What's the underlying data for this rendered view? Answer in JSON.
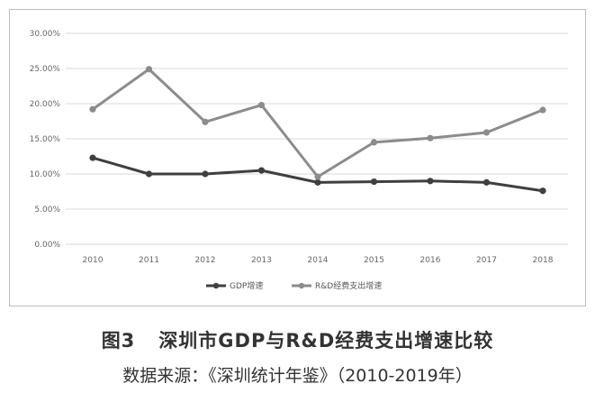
{
  "chart_data": {
    "type": "line",
    "categories": [
      "2010",
      "2011",
      "2012",
      "2013",
      "2014",
      "2015",
      "2016",
      "2017",
      "2018"
    ],
    "series": [
      {
        "name": "GDP增速",
        "values": [
          12.3,
          10.0,
          10.0,
          10.5,
          8.8,
          8.9,
          9.0,
          8.8,
          7.6
        ],
        "color": "#3f3f3f"
      },
      {
        "name": "R&D经费支出增速",
        "values": [
          19.2,
          24.9,
          17.4,
          19.8,
          9.6,
          14.5,
          15.1,
          15.9,
          19.1
        ],
        "color": "#8c8c8c"
      }
    ],
    "yticks": [
      "0.00%",
      "5.00%",
      "10.00%",
      "15.00%",
      "20.00%",
      "25.00%",
      "30.00%"
    ],
    "ylim": [
      0,
      30
    ],
    "grid": true,
    "legend": "bottom-center",
    "title": ""
  },
  "caption": {
    "figure_number": "图3",
    "title": "深圳市GDP与R&D经费支出增速比较",
    "source": "数据来源：《深圳统计年鉴》（2010-2019年）"
  }
}
